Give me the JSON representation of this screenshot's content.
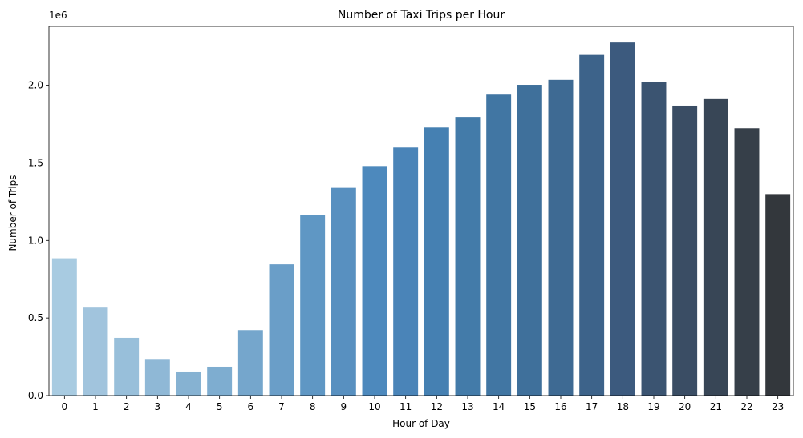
{
  "chart_data": {
    "type": "bar",
    "title": "Number of Taxi Trips per Hour",
    "xlabel": "Hour of Day",
    "ylabel": "Number of Trips",
    "scale_note": "1e6",
    "categories": [
      "0",
      "1",
      "2",
      "3",
      "4",
      "5",
      "6",
      "7",
      "8",
      "9",
      "10",
      "11",
      "12",
      "13",
      "14",
      "15",
      "16",
      "17",
      "18",
      "19",
      "20",
      "21",
      "22",
      "23"
    ],
    "values": [
      885000,
      567000,
      372000,
      236000,
      155000,
      186000,
      422000,
      846000,
      1165000,
      1339000,
      1480000,
      1599000,
      1728000,
      1796000,
      1940000,
      2003000,
      2035000,
      2196000,
      2276000,
      2022000,
      1869000,
      1911000,
      1723000,
      1299000
    ],
    "ylim": [
      0,
      2380000
    ],
    "yticks": [
      0,
      500000,
      1000000,
      1500000,
      2000000
    ],
    "ytick_labels": [
      "0.0",
      "0.5",
      "1.0",
      "1.5",
      "2.0"
    ],
    "grid": false,
    "legend": "none",
    "colors": [
      "#a8cbe1",
      "#a1c4dd",
      "#98bfda",
      "#8fb8d6",
      "#86b2d2",
      "#7eadd0",
      "#75a6cc",
      "#6a9ec8",
      "#5f97c4",
      "#5890c0",
      "#4d89bd",
      "#4a84b8",
      "#4580b2",
      "#437ba9",
      "#4176a3",
      "#3f709b",
      "#3e6a93",
      "#3d638a",
      "#3c5a7e",
      "#3b5471",
      "#3a4d64",
      "#384656",
      "#363f49",
      "#33373c"
    ]
  }
}
